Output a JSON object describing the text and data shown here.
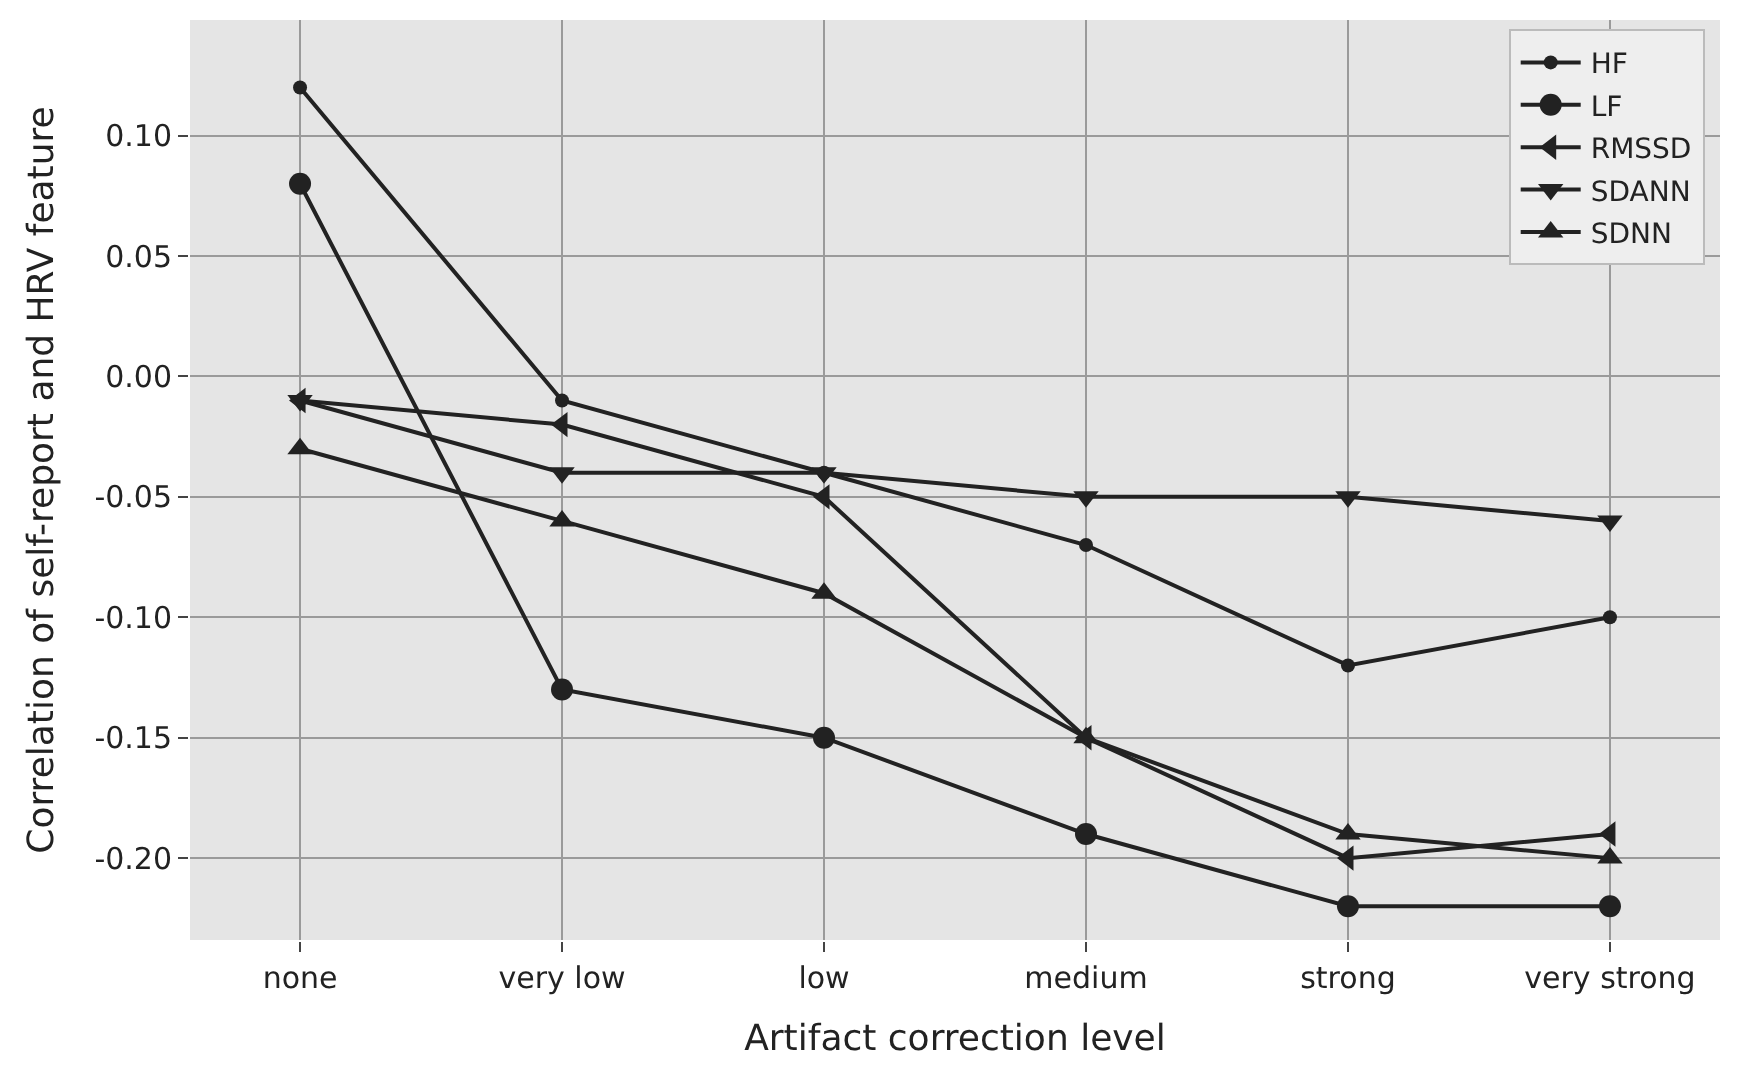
{
  "chart_data": {
    "type": "line",
    "xlabel": "Artifact correction level",
    "ylabel": "Correlation of self-report and HRV feature",
    "categories": [
      "none",
      "very low",
      "low",
      "medium",
      "strong",
      "very strong"
    ],
    "series": [
      {
        "name": "HF",
        "color": "#222222",
        "marker": "circle",
        "values": [
          0.12,
          -0.01,
          -0.04,
          -0.07,
          -0.12,
          -0.1
        ]
      },
      {
        "name": "LF",
        "color": "#222222",
        "marker": "circle",
        "values": [
          0.08,
          -0.13,
          -0.15,
          -0.19,
          -0.22,
          -0.22
        ]
      },
      {
        "name": "RMSSD",
        "color": "#222222",
        "marker": "triangle-left",
        "values": [
          -0.01,
          -0.02,
          -0.05,
          -0.15,
          -0.2,
          -0.19
        ]
      },
      {
        "name": "SDANN",
        "color": "#222222",
        "marker": "triangle-down",
        "values": [
          -0.01,
          -0.04,
          -0.04,
          -0.05,
          -0.05,
          -0.06
        ]
      },
      {
        "name": "SDNN",
        "color": "#222222",
        "marker": "triangle-up",
        "values": [
          -0.03,
          -0.06,
          -0.09,
          -0.15,
          -0.19,
          -0.2
        ]
      }
    ],
    "ylim": [
      -0.234,
      0.148
    ],
    "yticks": [
      {
        "value": 0.1,
        "label": "0.10"
      },
      {
        "value": 0.05,
        "label": "0.05"
      },
      {
        "value": 0,
        "label": "0.00"
      },
      {
        "value": -0.05,
        "label": "-0.05"
      },
      {
        "value": -0.1,
        "label": "-0.10"
      },
      {
        "value": -0.15,
        "label": "-0.15"
      },
      {
        "value": -0.2,
        "label": "-0.20"
      }
    ],
    "grid": true,
    "legend": "top right",
    "line_style": "solid"
  }
}
